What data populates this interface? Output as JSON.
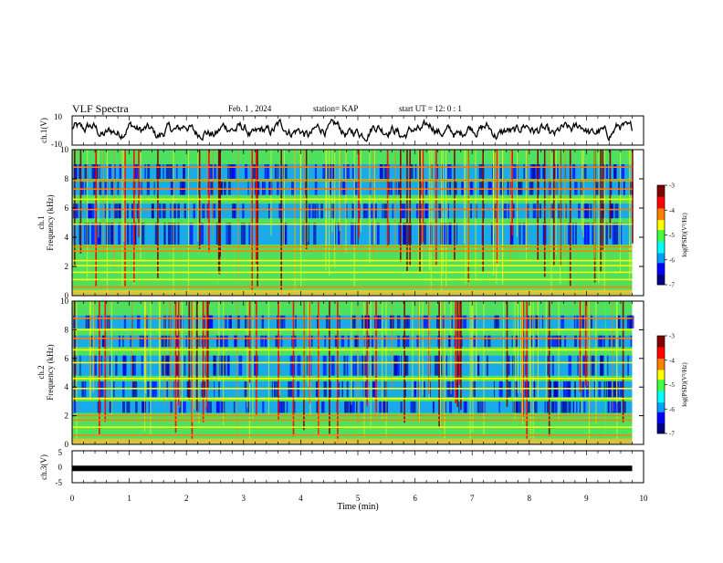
{
  "header": {
    "title": "VLF Spectra",
    "date": "Feb. 1 , 2024",
    "station": "station= KAP",
    "start": "start UT = 12: 0 : 1"
  },
  "colorbar": {
    "label": "log(PSD)(V²/Hz)",
    "ticks": [
      "-3",
      "-4",
      "-5",
      "-6",
      "-7"
    ],
    "range": [
      -7,
      -3
    ],
    "colors": [
      "#000080",
      "#0000ff",
      "#00a0ff",
      "#00ffff",
      "#40ff40",
      "#ffff00",
      "#ff8000",
      "#ff0000",
      "#800000"
    ]
  },
  "chart_data": [
    {
      "type": "line",
      "ylabel": "ch.1(V)",
      "ylim": [
        -10,
        10
      ],
      "yticks": [
        "10",
        "-10"
      ],
      "xlim": [
        0,
        10
      ],
      "line_color": "#000000"
    },
    {
      "type": "heatmap",
      "ylabel_top": "ch.1",
      "ylabel": "Frequency (kHz)",
      "ylim": [
        0,
        10
      ],
      "yticks": [
        "0",
        "2",
        "4",
        "6",
        "8",
        "10"
      ],
      "xlim": [
        0,
        10
      ],
      "bands_khz": [
        0.3,
        0.6,
        1.1,
        1.6,
        2.05,
        2.4,
        3.05,
        3.35,
        4.9,
        5.9,
        6.6,
        7.3,
        7.9,
        8.8
      ],
      "quiet_bands_khz": [
        [
          3.5,
          5.0
        ],
        [
          5.3,
          6.3
        ],
        [
          6.9,
          7.8
        ],
        [
          8.0,
          9.0
        ]
      ]
    },
    {
      "type": "heatmap",
      "ylabel_top": "ch.2",
      "ylabel": "Frequency (kHz)",
      "ylim": [
        0,
        10
      ],
      "yticks": [
        "0",
        "2",
        "4",
        "6",
        "8",
        "10"
      ],
      "xlim": [
        0,
        10
      ],
      "bands_khz": [
        0.3,
        0.65,
        1.2,
        1.7,
        2.0,
        3.2,
        3.9,
        4.6,
        5.7,
        6.6,
        7.4,
        8.0,
        8.8
      ],
      "quiet_bands_khz": [
        [
          2.2,
          3.0
        ],
        [
          3.3,
          4.4
        ],
        [
          4.8,
          6.2
        ],
        [
          6.8,
          7.6
        ],
        [
          8.1,
          9.0
        ]
      ]
    },
    {
      "type": "line",
      "ylabel": "ch.3(V)",
      "ylim": [
        -5,
        5
      ],
      "yticks": [
        "5",
        "0",
        "-5"
      ],
      "xlim": [
        0,
        10
      ],
      "level_v": -0.5,
      "xlabel": "Time (min)",
      "xticks": [
        "0",
        "1",
        "2",
        "3",
        "4",
        "5",
        "6",
        "7",
        "8",
        "9",
        "10"
      ],
      "data_end_min": 9.8
    }
  ]
}
